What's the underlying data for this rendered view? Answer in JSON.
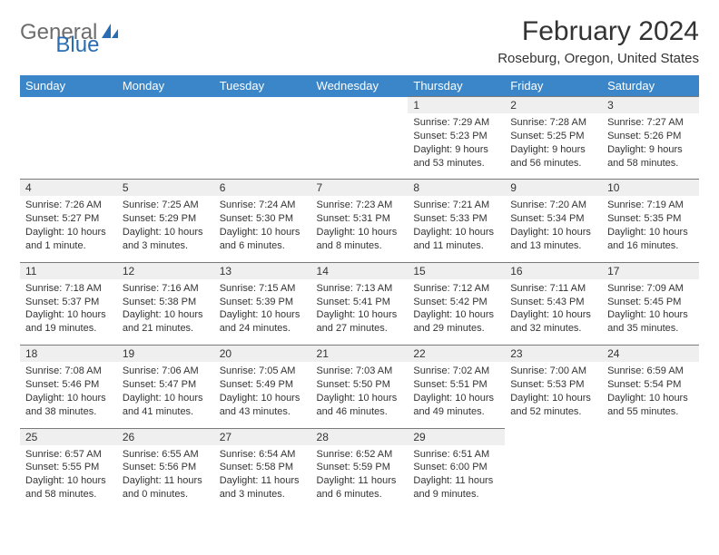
{
  "logo": {
    "text1": "General",
    "text2": "Blue"
  },
  "title": "February 2024",
  "subtitle": "Roseburg, Oregon, United States",
  "colors": {
    "header_bg": "#3a86c8",
    "header_fg": "#ffffff",
    "daynum_bg": "#efefef",
    "daynum_border": "#7a7a7a",
    "text": "#333333",
    "logo_gray": "#6d6d6d",
    "logo_blue": "#2a6db3",
    "page_bg": "#ffffff"
  },
  "typography": {
    "title_fontsize": 30,
    "subtitle_fontsize": 15,
    "header_fontsize": 13,
    "daynum_fontsize": 12,
    "cell_fontsize": 11
  },
  "weekdays": [
    "Sunday",
    "Monday",
    "Tuesday",
    "Wednesday",
    "Thursday",
    "Friday",
    "Saturday"
  ],
  "first_weekday_index": 4,
  "days": [
    {
      "n": 1,
      "sunrise": "7:29 AM",
      "sunset": "5:23 PM",
      "daylight": "9 hours and 53 minutes."
    },
    {
      "n": 2,
      "sunrise": "7:28 AM",
      "sunset": "5:25 PM",
      "daylight": "9 hours and 56 minutes."
    },
    {
      "n": 3,
      "sunrise": "7:27 AM",
      "sunset": "5:26 PM",
      "daylight": "9 hours and 58 minutes."
    },
    {
      "n": 4,
      "sunrise": "7:26 AM",
      "sunset": "5:27 PM",
      "daylight": "10 hours and 1 minute."
    },
    {
      "n": 5,
      "sunrise": "7:25 AM",
      "sunset": "5:29 PM",
      "daylight": "10 hours and 3 minutes."
    },
    {
      "n": 6,
      "sunrise": "7:24 AM",
      "sunset": "5:30 PM",
      "daylight": "10 hours and 6 minutes."
    },
    {
      "n": 7,
      "sunrise": "7:23 AM",
      "sunset": "5:31 PM",
      "daylight": "10 hours and 8 minutes."
    },
    {
      "n": 8,
      "sunrise": "7:21 AM",
      "sunset": "5:33 PM",
      "daylight": "10 hours and 11 minutes."
    },
    {
      "n": 9,
      "sunrise": "7:20 AM",
      "sunset": "5:34 PM",
      "daylight": "10 hours and 13 minutes."
    },
    {
      "n": 10,
      "sunrise": "7:19 AM",
      "sunset": "5:35 PM",
      "daylight": "10 hours and 16 minutes."
    },
    {
      "n": 11,
      "sunrise": "7:18 AM",
      "sunset": "5:37 PM",
      "daylight": "10 hours and 19 minutes."
    },
    {
      "n": 12,
      "sunrise": "7:16 AM",
      "sunset": "5:38 PM",
      "daylight": "10 hours and 21 minutes."
    },
    {
      "n": 13,
      "sunrise": "7:15 AM",
      "sunset": "5:39 PM",
      "daylight": "10 hours and 24 minutes."
    },
    {
      "n": 14,
      "sunrise": "7:13 AM",
      "sunset": "5:41 PM",
      "daylight": "10 hours and 27 minutes."
    },
    {
      "n": 15,
      "sunrise": "7:12 AM",
      "sunset": "5:42 PM",
      "daylight": "10 hours and 29 minutes."
    },
    {
      "n": 16,
      "sunrise": "7:11 AM",
      "sunset": "5:43 PM",
      "daylight": "10 hours and 32 minutes."
    },
    {
      "n": 17,
      "sunrise": "7:09 AM",
      "sunset": "5:45 PM",
      "daylight": "10 hours and 35 minutes."
    },
    {
      "n": 18,
      "sunrise": "7:08 AM",
      "sunset": "5:46 PM",
      "daylight": "10 hours and 38 minutes."
    },
    {
      "n": 19,
      "sunrise": "7:06 AM",
      "sunset": "5:47 PM",
      "daylight": "10 hours and 41 minutes."
    },
    {
      "n": 20,
      "sunrise": "7:05 AM",
      "sunset": "5:49 PM",
      "daylight": "10 hours and 43 minutes."
    },
    {
      "n": 21,
      "sunrise": "7:03 AM",
      "sunset": "5:50 PM",
      "daylight": "10 hours and 46 minutes."
    },
    {
      "n": 22,
      "sunrise": "7:02 AM",
      "sunset": "5:51 PM",
      "daylight": "10 hours and 49 minutes."
    },
    {
      "n": 23,
      "sunrise": "7:00 AM",
      "sunset": "5:53 PM",
      "daylight": "10 hours and 52 minutes."
    },
    {
      "n": 24,
      "sunrise": "6:59 AM",
      "sunset": "5:54 PM",
      "daylight": "10 hours and 55 minutes."
    },
    {
      "n": 25,
      "sunrise": "6:57 AM",
      "sunset": "5:55 PM",
      "daylight": "10 hours and 58 minutes."
    },
    {
      "n": 26,
      "sunrise": "6:55 AM",
      "sunset": "5:56 PM",
      "daylight": "11 hours and 0 minutes."
    },
    {
      "n": 27,
      "sunrise": "6:54 AM",
      "sunset": "5:58 PM",
      "daylight": "11 hours and 3 minutes."
    },
    {
      "n": 28,
      "sunrise": "6:52 AM",
      "sunset": "5:59 PM",
      "daylight": "11 hours and 6 minutes."
    },
    {
      "n": 29,
      "sunrise": "6:51 AM",
      "sunset": "6:00 PM",
      "daylight": "11 hours and 9 minutes."
    }
  ],
  "labels": {
    "sunrise": "Sunrise:",
    "sunset": "Sunset:",
    "daylight": "Daylight:"
  }
}
